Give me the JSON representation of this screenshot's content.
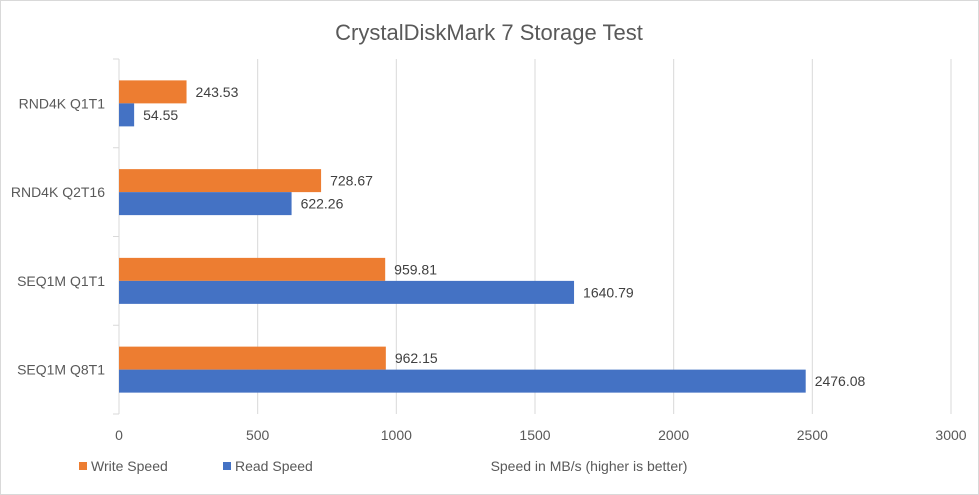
{
  "chart_data": {
    "type": "bar",
    "orientation": "horizontal",
    "title": "CrystalDiskMark 7 Storage Test",
    "xlabel": "Speed in MB/s (higher is better)",
    "ylabel": "",
    "xlim": [
      0,
      3000
    ],
    "x_ticks": [
      "0",
      "500",
      "1000",
      "1500",
      "2000",
      "2500",
      "3000"
    ],
    "grid": true,
    "legend_position": "bottom-left",
    "categories": [
      "RND4K Q1T1",
      "RND4K Q2T16",
      "SEQ1M Q1T1",
      "SEQ1M Q8T1"
    ],
    "series": [
      {
        "name": "Write Speed",
        "color": "#ED7D31",
        "values": [
          243.53,
          728.67,
          959.81,
          962.15
        ],
        "labels": [
          "243.53",
          "728.67",
          "959.81",
          "962.15"
        ]
      },
      {
        "name": "Read Speed",
        "color": "#4472C4",
        "values": [
          54.55,
          622.26,
          1640.79,
          2476.08
        ],
        "labels": [
          "54.55",
          "622.26",
          "1640.79",
          "2476.08"
        ]
      }
    ]
  }
}
